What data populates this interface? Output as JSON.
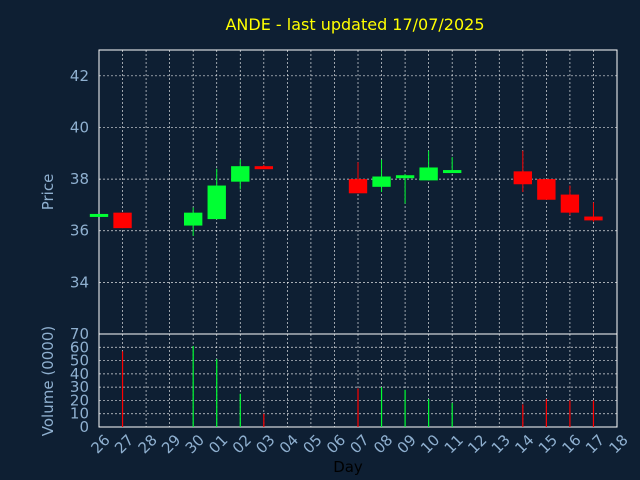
{
  "chart_data": [
    {
      "type": "candlestick",
      "title": "ANDE - last updated 17/07/2025",
      "ylabel": "Price",
      "ylim": [
        32.0,
        43.0
      ],
      "yticks": [
        34,
        36,
        38,
        40,
        42
      ],
      "grid": true,
      "colors": {
        "up": "#00ff33",
        "down": "#ff0000"
      },
      "candles": [
        {
          "x": "26",
          "open": 36.55,
          "high": 36.65,
          "low": 36.55,
          "close": 36.65
        },
        {
          "x": "27",
          "open": 36.7,
          "high": 36.7,
          "low": 36.1,
          "close": 36.1
        },
        {
          "x": "30",
          "open": 36.2,
          "high": 36.9,
          "low": 35.8,
          "close": 36.7
        },
        {
          "x": "01",
          "open": 36.45,
          "high": 38.4,
          "low": 36.45,
          "close": 37.75
        },
        {
          "x": "02",
          "open": 37.9,
          "high": 38.75,
          "low": 37.6,
          "close": 38.5
        },
        {
          "x": "03",
          "open": 38.5,
          "high": 38.55,
          "low": 38.4,
          "close": 38.4
        },
        {
          "x": "07",
          "open": 38.0,
          "high": 38.65,
          "low": 37.45,
          "close": 37.45
        },
        {
          "x": "08",
          "open": 37.7,
          "high": 38.75,
          "low": 37.5,
          "close": 38.1
        },
        {
          "x": "09",
          "open": 38.1,
          "high": 38.2,
          "low": 37.05,
          "close": 38.15
        },
        {
          "x": "10",
          "open": 37.95,
          "high": 39.1,
          "low": 37.95,
          "close": 38.45
        },
        {
          "x": "11",
          "open": 38.3,
          "high": 38.85,
          "low": 38.3,
          "close": 38.35
        },
        {
          "x": "14",
          "open": 38.3,
          "high": 39.1,
          "low": 37.5,
          "close": 37.8
        },
        {
          "x": "15",
          "open": 38.0,
          "high": 38.0,
          "low": 37.2,
          "close": 37.2
        },
        {
          "x": "16",
          "open": 37.4,
          "high": 37.75,
          "low": 36.6,
          "close": 36.7
        },
        {
          "x": "17",
          "open": 36.55,
          "high": 37.1,
          "low": 36.35,
          "close": 36.4
        }
      ]
    },
    {
      "type": "bar",
      "ylabel": "Volume (0000)",
      "xlabel": "Day",
      "ylim": [
        0,
        70
      ],
      "yticks": [
        0,
        10,
        20,
        30,
        40,
        50,
        60,
        70
      ],
      "categories": [
        "26",
        "27",
        "28",
        "29",
        "30",
        "01",
        "02",
        "03",
        "04",
        "05",
        "06",
        "07",
        "08",
        "09",
        "10",
        "11",
        "12",
        "13",
        "14",
        "15",
        "16",
        "17",
        "18"
      ],
      "bars": [
        {
          "x": "27",
          "value": 57,
          "direction": "down"
        },
        {
          "x": "30",
          "value": 61,
          "direction": "up"
        },
        {
          "x": "01",
          "value": 51,
          "direction": "up"
        },
        {
          "x": "02",
          "value": 25,
          "direction": "up"
        },
        {
          "x": "03",
          "value": 10,
          "direction": "down"
        },
        {
          "x": "07",
          "value": 29,
          "direction": "down"
        },
        {
          "x": "08",
          "value": 30,
          "direction": "up"
        },
        {
          "x": "09",
          "value": 28,
          "direction": "up"
        },
        {
          "x": "10",
          "value": 21,
          "direction": "up"
        },
        {
          "x": "11",
          "value": 18,
          "direction": "up"
        },
        {
          "x": "14",
          "value": 17,
          "direction": "down"
        },
        {
          "x": "15",
          "value": 21,
          "direction": "down"
        },
        {
          "x": "16",
          "value": 20,
          "direction": "down"
        },
        {
          "x": "17",
          "value": 20,
          "direction": "down"
        }
      ]
    }
  ]
}
